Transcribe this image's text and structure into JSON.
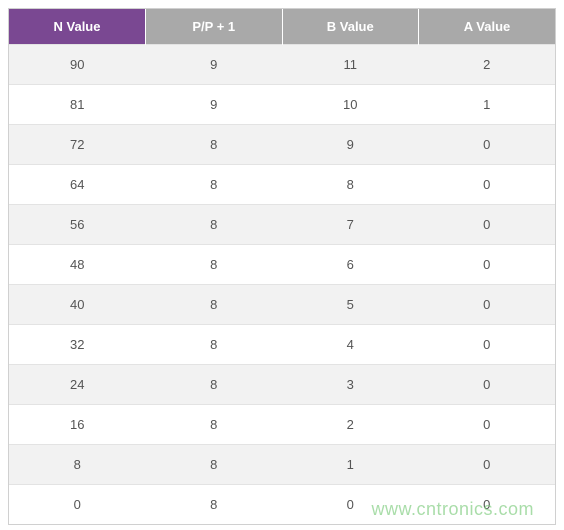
{
  "table": {
    "columns": [
      {
        "label": "N Value",
        "header_bg": "#7a4892"
      },
      {
        "label": "P/P + 1",
        "header_bg": "#a9a9a9"
      },
      {
        "label": "B Value",
        "header_bg": "#a9a9a9"
      },
      {
        "label": "A Value",
        "header_bg": "#a9a9a9"
      }
    ],
    "rows": [
      [
        "90",
        "9",
        "11",
        "2"
      ],
      [
        "81",
        "9",
        "10",
        "1"
      ],
      [
        "72",
        "8",
        "9",
        "0"
      ],
      [
        "64",
        "8",
        "8",
        "0"
      ],
      [
        "56",
        "8",
        "7",
        "0"
      ],
      [
        "48",
        "8",
        "6",
        "0"
      ],
      [
        "40",
        "8",
        "5",
        "0"
      ],
      [
        "32",
        "8",
        "4",
        "0"
      ],
      [
        "24",
        "8",
        "3",
        "0"
      ],
      [
        "16",
        "8",
        "2",
        "0"
      ],
      [
        "8",
        "8",
        "1",
        "0"
      ],
      [
        "0",
        "8",
        "0",
        "0"
      ]
    ],
    "header_text_color": "#ffffff",
    "cell_text_color": "#555555",
    "cell_fontsize": 13,
    "row_bg_odd": "#f2f2f2",
    "row_bg_even": "#ffffff",
    "border_color": "#d0d0d0",
    "row_divider_color": "#e3e3e3"
  },
  "watermark": {
    "text": "www.cntronics.com",
    "color": "#7ccb7c",
    "fontsize": 18,
    "opacity": 0.65
  }
}
